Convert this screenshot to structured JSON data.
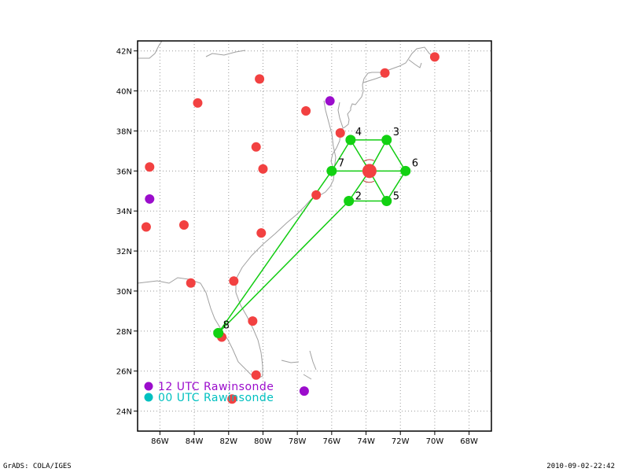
{
  "colors": {
    "coast": "#a0a0a0",
    "grid": "#9a9a9a",
    "station_12utc": "#9b0dcc",
    "station_00utc": "#00c0c0",
    "station_red": "#f24141",
    "dropsonde": "#12d112",
    "track": "#12cc12",
    "center_ring": "#c04040"
  },
  "map": {
    "projection": "latlon",
    "lon_range": [
      -87.3,
      -66.7
    ],
    "lat_range": [
      23.0,
      42.5
    ],
    "lon_ticks": [
      {
        "value": -86,
        "label": "86W"
      },
      {
        "value": -84,
        "label": "84W"
      },
      {
        "value": -82,
        "label": "82W"
      },
      {
        "value": -80,
        "label": "80W"
      },
      {
        "value": -78,
        "label": "78W"
      },
      {
        "value": -76,
        "label": "76W"
      },
      {
        "value": -74,
        "label": "74W"
      },
      {
        "value": -72,
        "label": "72W"
      },
      {
        "value": -70,
        "label": "70W"
      },
      {
        "value": -68,
        "label": "68W"
      }
    ],
    "lat_ticks": [
      {
        "value": 24,
        "label": "24N"
      },
      {
        "value": 26,
        "label": "26N"
      },
      {
        "value": 28,
        "label": "28N"
      },
      {
        "value": 30,
        "label": "30N"
      },
      {
        "value": 32,
        "label": "32N"
      },
      {
        "value": 34,
        "label": "34N"
      },
      {
        "value": 36,
        "label": "36N"
      },
      {
        "value": 38,
        "label": "38N"
      },
      {
        "value": 40,
        "label": "40N"
      },
      {
        "value": 42,
        "label": "42N"
      }
    ],
    "grid": true
  },
  "stations_red": [
    [
      -70.0,
      41.7
    ],
    [
      -72.9,
      40.9
    ],
    [
      -80.2,
      40.6
    ],
    [
      -83.8,
      39.4
    ],
    [
      -77.5,
      39.0
    ],
    [
      -75.5,
      37.9
    ],
    [
      -80.4,
      37.2
    ],
    [
      -80.0,
      36.1
    ],
    [
      -86.6,
      36.2
    ],
    [
      -76.9,
      34.8
    ],
    [
      -84.6,
      33.3
    ],
    [
      -86.8,
      33.2
    ],
    [
      -80.1,
      32.9
    ],
    [
      -84.2,
      30.4
    ],
    [
      -81.7,
      30.5
    ],
    [
      -80.6,
      28.5
    ],
    [
      -82.4,
      27.7
    ],
    [
      -80.4,
      25.8
    ],
    [
      -81.8,
      24.6
    ]
  ],
  "stations_12utc": [
    [
      -76.1,
      39.5
    ],
    [
      -86.6,
      34.6
    ],
    [
      -77.6,
      25.0
    ]
  ],
  "storm_center": {
    "lon": -73.8,
    "lat": 36.0
  },
  "dropsondes": [
    {
      "id": "2",
      "lon": -75.0,
      "lat": 34.5
    },
    {
      "id": "3",
      "lon": -72.8,
      "lat": 37.55
    },
    {
      "id": "4",
      "lon": -74.9,
      "lat": 37.55
    },
    {
      "id": "5",
      "lon": -72.8,
      "lat": 34.5
    },
    {
      "id": "6",
      "lon": -71.7,
      "lat": 36.0
    },
    {
      "id": "7",
      "lon": -76.0,
      "lat": 36.0
    },
    {
      "id": "8",
      "lon": -82.6,
      "lat": 27.9
    }
  ],
  "track_order": [
    "8",
    "7",
    "4",
    "3",
    "6",
    "5",
    "2",
    "8"
  ],
  "spokes": [
    "3",
    "4",
    "5",
    "6",
    "7",
    "2"
  ],
  "legend": {
    "utc12": "12 UTC Rawinsonde",
    "utc00": "00 UTC Rawinsonde"
  },
  "footer": {
    "left": "GrADS: COLA/IGES",
    "right": "2010-09-02-22:42"
  }
}
